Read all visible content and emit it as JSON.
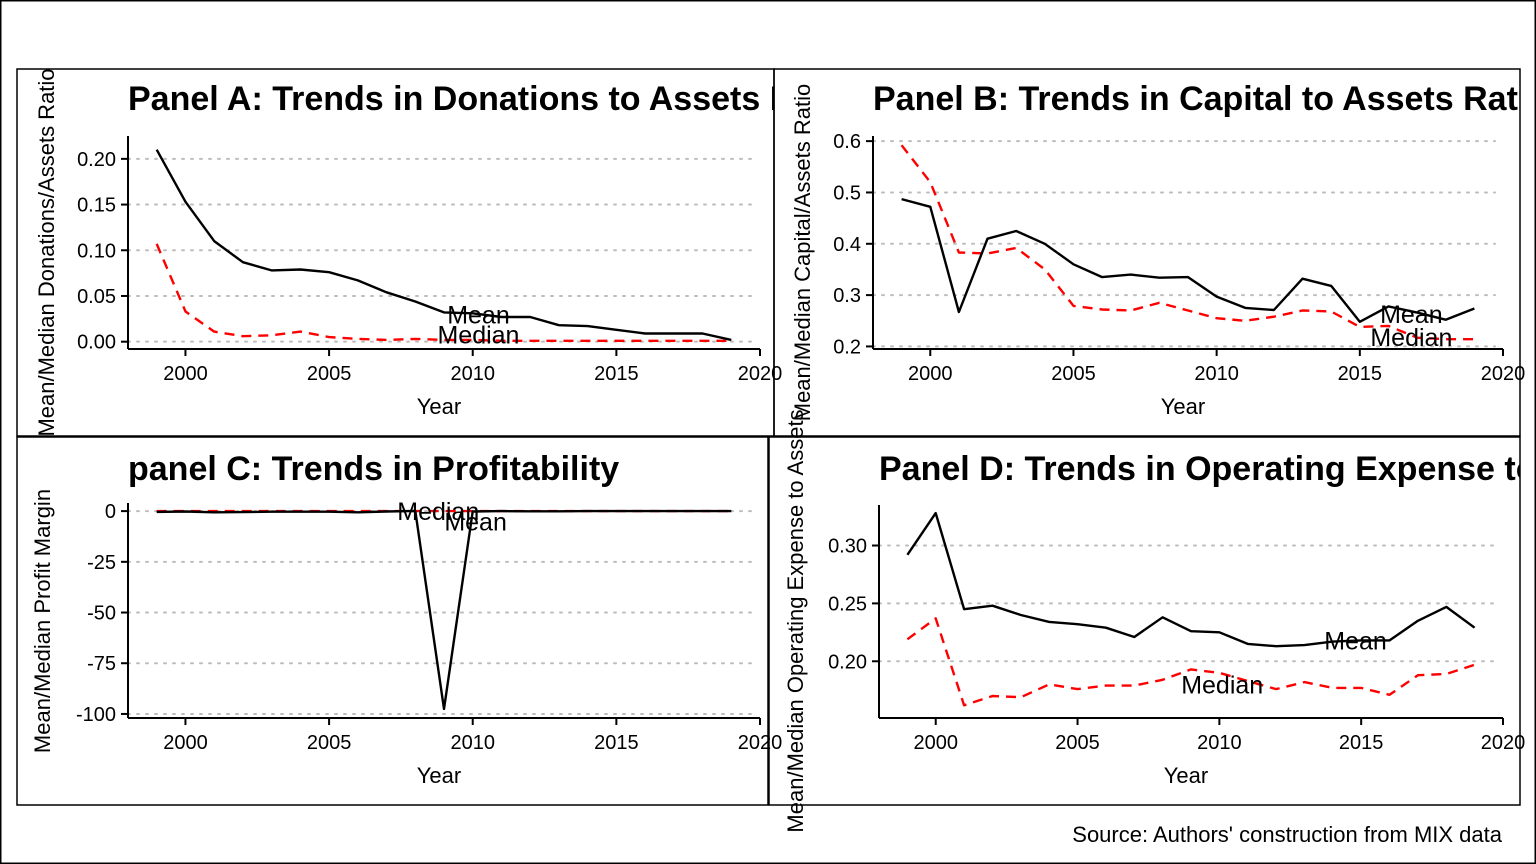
{
  "source_note": "Source: Authors' construction from MIX data",
  "chart_data": [
    {
      "type": "line",
      "title": "Panel A: Trends in Donations to Assets Ratio",
      "xlabel": "Year",
      "ylabel": "Mean/Median Donations/Assets Ratio",
      "xlim": [
        1998,
        2020
      ],
      "ylim": [
        -0.008,
        0.225
      ],
      "x_ticks": [
        2000,
        2005,
        2010,
        2015,
        2020
      ],
      "y_ticks": [
        0.0,
        0.05,
        0.1,
        0.15,
        0.2
      ],
      "y_tick_labels": [
        "0.00",
        "0.05",
        "0.10",
        "0.15",
        "0.20"
      ],
      "grid": "horizontal-dotted",
      "x": [
        1999,
        2000,
        2001,
        2002,
        2003,
        2004,
        2005,
        2006,
        2007,
        2008,
        2009,
        2010,
        2011,
        2012,
        2013,
        2014,
        2015,
        2016,
        2017,
        2018,
        2019
      ],
      "series": [
        {
          "name": "Mean",
          "color": "#000000",
          "dash": "solid",
          "values": [
            0.21,
            0.153,
            0.11,
            0.087,
            0.078,
            0.079,
            0.076,
            0.067,
            0.054,
            0.044,
            0.032,
            0.031,
            0.027,
            0.027,
            0.018,
            0.017,
            0.013,
            0.009,
            0.009,
            0.009,
            0.002
          ]
        },
        {
          "name": "Median",
          "color": "#ff0000",
          "dash": "dashed",
          "values": [
            0.107,
            0.033,
            0.011,
            0.006,
            0.007,
            0.011,
            0.005,
            0.003,
            0.002,
            0.003,
            0.002,
            0.002,
            0.001,
            0.001,
            0.001,
            0.001,
            0.001,
            0.001,
            0.001,
            0.001,
            0.001
          ]
        }
      ],
      "annotations": [
        {
          "text": "Mean",
          "x": 2010.2,
          "y": 0.03
        },
        {
          "text": "Median",
          "x": 2010.2,
          "y": 0.008
        }
      ]
    },
    {
      "type": "line",
      "title": "Panel B: Trends in Capital to Assets Ratio",
      "xlabel": "Year",
      "ylabel": "Mean/Median Capital/Assets Ratio",
      "xlim": [
        1998,
        2020
      ],
      "ylim": [
        0.195,
        0.61
      ],
      "x_ticks": [
        2000,
        2005,
        2010,
        2015,
        2020
      ],
      "y_ticks": [
        0.2,
        0.3,
        0.4,
        0.5,
        0.6
      ],
      "y_tick_labels": [
        "0.2",
        "0.3",
        "0.4",
        "0.5",
        "0.6"
      ],
      "grid": "horizontal-dotted",
      "x": [
        1999,
        2000,
        2001,
        2002,
        2003,
        2004,
        2005,
        2006,
        2007,
        2008,
        2009,
        2010,
        2011,
        2012,
        2013,
        2014,
        2015,
        2016,
        2017,
        2018,
        2019
      ],
      "series": [
        {
          "name": "Mean",
          "color": "#000000",
          "dash": "solid",
          "values": [
            0.487,
            0.472,
            0.267,
            0.41,
            0.425,
            0.4,
            0.36,
            0.335,
            0.34,
            0.334,
            0.335,
            0.297,
            0.275,
            0.271,
            0.332,
            0.318,
            0.248,
            0.278,
            0.266,
            0.252,
            0.274
          ]
        },
        {
          "name": "Median",
          "color": "#ff0000",
          "dash": "dashed",
          "values": [
            0.592,
            0.52,
            0.383,
            0.381,
            0.392,
            0.35,
            0.279,
            0.272,
            0.27,
            0.285,
            0.27,
            0.255,
            0.25,
            0.258,
            0.27,
            0.268,
            0.238,
            0.24,
            0.217,
            0.214,
            0.214
          ]
        }
      ],
      "annotations": [
        {
          "text": "Mean",
          "x": 2016.8,
          "y": 0.263
        },
        {
          "text": "Median",
          "x": 2016.8,
          "y": 0.218
        }
      ]
    },
    {
      "type": "line",
      "title": "panel C: Trends in Profitability",
      "xlabel": "Year",
      "ylabel": "Mean/Median Profit Margin",
      "xlim": [
        1998,
        2020
      ],
      "ylim": [
        -102,
        4
      ],
      "x_ticks": [
        2000,
        2005,
        2010,
        2015,
        2020
      ],
      "y_ticks": [
        0,
        -25,
        -50,
        -75,
        -100
      ],
      "y_tick_labels": [
        "0",
        "-25",
        "-50",
        "-75",
        "-100"
      ],
      "grid": "horizontal-dotted",
      "x": [
        1999,
        2000,
        2001,
        2002,
        2003,
        2004,
        2005,
        2006,
        2007,
        2008,
        2009,
        2010,
        2011,
        2012,
        2013,
        2014,
        2015,
        2016,
        2017,
        2018,
        2019
      ],
      "series": [
        {
          "name": "Mean",
          "color": "#000000",
          "dash": "solid",
          "values": [
            -0.4,
            -0.2,
            -0.6,
            -0.5,
            -0.3,
            -0.3,
            -0.3,
            -0.6,
            -0.2,
            0.1,
            -97.5,
            -0.2,
            0.0,
            -0.1,
            -0.1,
            0.0,
            0.0,
            0.0,
            0.0,
            0.0,
            0.0
          ]
        },
        {
          "name": "Median",
          "color": "#ff0000",
          "dash": "dashed",
          "values": [
            0.0,
            0.0,
            0.0,
            0.0,
            0.0,
            0.0,
            0.0,
            0.0,
            0.0,
            0.0,
            0.0,
            0.0,
            0.0,
            0.0,
            0.0,
            0.0,
            0.0,
            0.0,
            0.0,
            0.0,
            0.0
          ]
        }
      ],
      "annotations": [
        {
          "text": "Median",
          "x": 2008.8,
          "y": 0.0
        },
        {
          "text": "Mean",
          "x": 2010.1,
          "y": -5.0
        }
      ]
    },
    {
      "type": "line",
      "title": "Panel D: Trends in Operating Expense to Assets Ratio",
      "xlabel": "Year",
      "ylabel": "Mean/Median Operating Expense to Assets",
      "xlim": [
        1998,
        2020
      ],
      "ylim": [
        0.151,
        0.335
      ],
      "x_ticks": [
        2000,
        2005,
        2010,
        2015,
        2020
      ],
      "y_ticks": [
        0.2,
        0.25,
        0.3
      ],
      "y_tick_labels": [
        "0.20",
        "0.25",
        "0.30"
      ],
      "grid": "horizontal-dotted",
      "x": [
        1999,
        2000,
        2001,
        2002,
        2003,
        2004,
        2005,
        2006,
        2007,
        2008,
        2009,
        2010,
        2011,
        2012,
        2013,
        2014,
        2015,
        2016,
        2017,
        2018,
        2019
      ],
      "series": [
        {
          "name": "Mean",
          "color": "#000000",
          "dash": "solid",
          "values": [
            0.292,
            0.328,
            0.245,
            0.248,
            0.24,
            0.234,
            0.232,
            0.229,
            0.221,
            0.238,
            0.226,
            0.225,
            0.215,
            0.213,
            0.214,
            0.217,
            0.218,
            0.218,
            0.235,
            0.247,
            0.229
          ]
        },
        {
          "name": "Median",
          "color": "#ff0000",
          "dash": "dashed",
          "values": [
            0.219,
            0.237,
            0.162,
            0.17,
            0.169,
            0.18,
            0.176,
            0.179,
            0.179,
            0.184,
            0.193,
            0.19,
            0.183,
            0.176,
            0.182,
            0.177,
            0.177,
            0.171,
            0.188,
            0.189,
            0.197
          ]
        }
      ],
      "annotations": [
        {
          "text": "Mean",
          "x": 2014.8,
          "y": 0.218
        },
        {
          "text": "Median",
          "x": 2010.1,
          "y": 0.18
        }
      ]
    }
  ]
}
